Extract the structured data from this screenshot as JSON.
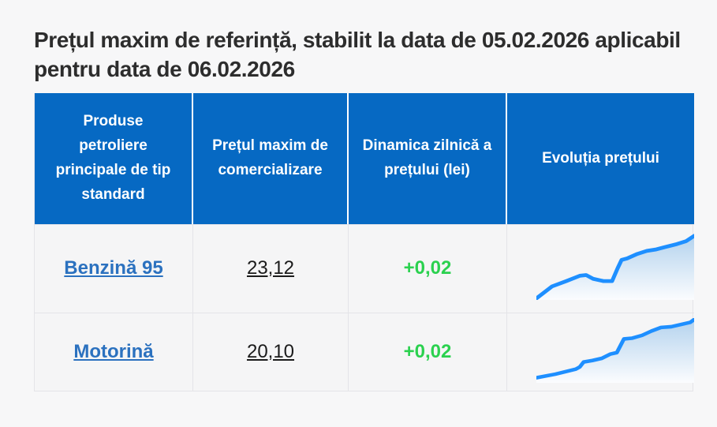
{
  "page": {
    "title": "Prețul maxim de referință, stabilit la data de 05.02.2026 aplicabil pentru data de 06.02.2026"
  },
  "colors": {
    "page_bg": "#f7f7f8",
    "cell_bg": "#f5f5f6",
    "border": "#e4e4e8",
    "header_bg": "#0669c3",
    "header_text": "#ffffff",
    "link": "#2b71bf",
    "positive_change": "#2bd14f",
    "title_text": "#2d2d2d",
    "price_text": "#1b1b1b",
    "spark_line": "#1e8fff",
    "spark_fill_top": "#b4d3ee",
    "spark_fill_bottom": "#fbfcfe"
  },
  "table": {
    "spark_box": [
      200,
      90
    ],
    "headers": [
      {
        "label": "Produse petroliere principale de tip standard"
      },
      {
        "label": "Prețul maxim de comercializare"
      },
      {
        "label": "Dinamica zilnică a prețului (lei)"
      },
      {
        "label": "Evoluția prețului"
      }
    ],
    "rows": [
      {
        "product": "Benzină 95",
        "max_price": "23,12",
        "daily_change": "+0,02",
        "spark": [
          [
            0,
            88
          ],
          [
            20,
            72
          ],
          [
            38,
            65
          ],
          [
            55,
            58
          ],
          [
            63,
            57
          ],
          [
            72,
            62
          ],
          [
            85,
            65
          ],
          [
            96,
            65
          ],
          [
            103,
            48
          ],
          [
            108,
            37
          ],
          [
            115,
            35
          ],
          [
            128,
            29
          ],
          [
            140,
            25
          ],
          [
            152,
            23
          ],
          [
            163,
            20
          ],
          [
            178,
            16
          ],
          [
            190,
            12
          ],
          [
            200,
            5
          ]
        ]
      },
      {
        "product": "Motorină",
        "max_price": "20,10",
        "daily_change": "+0,02",
        "spark": [
          [
            0,
            83
          ],
          [
            24,
            78
          ],
          [
            50,
            71
          ],
          [
            55,
            68
          ],
          [
            60,
            61
          ],
          [
            71,
            59
          ],
          [
            83,
            56
          ],
          [
            94,
            50
          ],
          [
            102,
            48
          ],
          [
            111,
            29
          ],
          [
            121,
            28
          ],
          [
            134,
            24
          ],
          [
            146,
            18
          ],
          [
            158,
            13
          ],
          [
            171,
            12
          ],
          [
            183,
            9
          ],
          [
            195,
            6
          ],
          [
            200,
            2
          ]
        ]
      }
    ]
  }
}
